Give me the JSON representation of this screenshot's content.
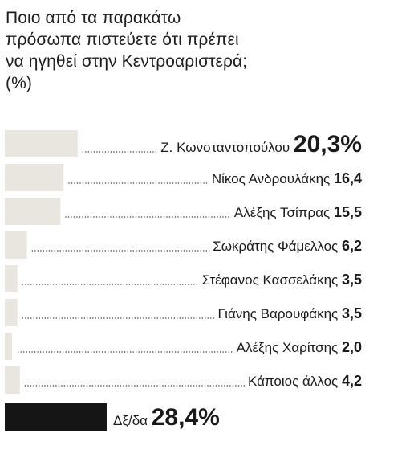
{
  "title_lines": [
    "Ποιο από τα παρακάτω",
    "πρόσωπα πιστεύετε ότι πρέπει",
    "να ηγηθεί στην Κεντροαριστερά;",
    "(%)"
  ],
  "chart_data": {
    "type": "bar",
    "orientation": "horizontal",
    "title": "Ποιο από τα παρακάτω πρόσωπα πιστεύετε ότι πρέπει να ηγηθεί στην Κεντροαριστερά;",
    "unit": "(%)",
    "categories": [
      "Ζ. Κωνσταντοπούλου",
      "Νίκος Ανδρουλάκης",
      "Αλέξης Τσίπρας",
      "Σωκράτης Φάμελλος",
      "Στέφανος Κασσελάκης",
      "Γιάνης Βαρουφάκης",
      "Αλέξης Χαρίτσης",
      "Κάποιος άλλος",
      "Δξ/δα"
    ],
    "values": [
      20.3,
      16.4,
      15.5,
      6.2,
      3.5,
      3.5,
      2.0,
      4.2,
      28.4
    ],
    "value_labels": [
      "20,3%",
      "16,4",
      "15,5",
      "6,2",
      "3,5",
      "3,5",
      "2,0",
      "4,2",
      "28,4%"
    ],
    "colors": {
      "bar": "#e9e6df",
      "bar_highlight": "#151515",
      "leader": "#3a3a3a",
      "text": "#1a1a1a"
    }
  }
}
